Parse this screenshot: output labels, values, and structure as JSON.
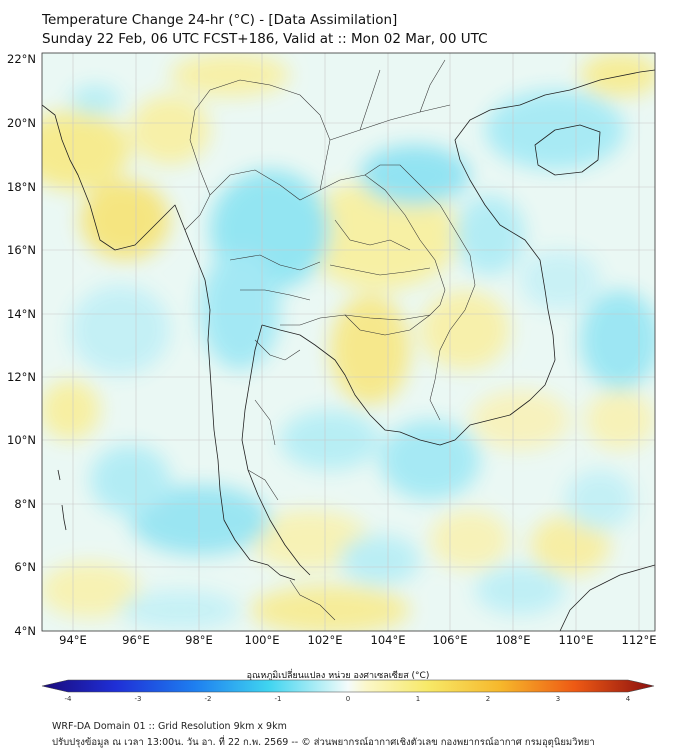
{
  "header": {
    "title_line1": "Temperature Change 24-hr (°C) - [Data Assimilation]",
    "title_line2": "Sunday 22 Feb, 06 UTC FCST+186, Valid at :: Mon 02 Mar, 00 UTC"
  },
  "map": {
    "lat_labels": [
      "22°N",
      "20°N",
      "18°N",
      "16°N",
      "14°N",
      "12°N",
      "10°N",
      "8°N",
      "6°N",
      "4°N"
    ],
    "lon_labels": [
      "94°E",
      "96°E",
      "98°E",
      "100°E",
      "102°E",
      "104°E",
      "106°E",
      "108°E",
      "110°E",
      "112°E"
    ],
    "extent": {
      "lon_min": 93.0,
      "lon_max": 112.5,
      "lat_min": 4.0,
      "lat_max": 22.2
    },
    "colors": {
      "warm": "#f6ef9a",
      "cool": "#a8ecf4",
      "neutral": "#eef9f8",
      "border": "#222222",
      "grid": "#cccccc"
    }
  },
  "colorbar": {
    "title": "อุณหภูมิเปลี่ยนแปลง หน่วย องศาเซลเซียส (°C)",
    "ticks": [
      "-4",
      "-3",
      "-2",
      "-1",
      "0",
      "1",
      "2",
      "3",
      "4"
    ],
    "min": -4,
    "max": 4
  },
  "footer": {
    "line1": "WRF-DA Domain 01 :: Grid Resolution 9km x 9km",
    "line2": "ปรับปรุงข้อมูล ณ เวลา 13:00น. วัน อา. ที่ 22 ก.พ. 2569 -- © ส่วนพยากรณ์อากาศเชิงตัวเลข กองพยากรณ์อากาศ กรมอุตุนิยมวิทยา"
  }
}
